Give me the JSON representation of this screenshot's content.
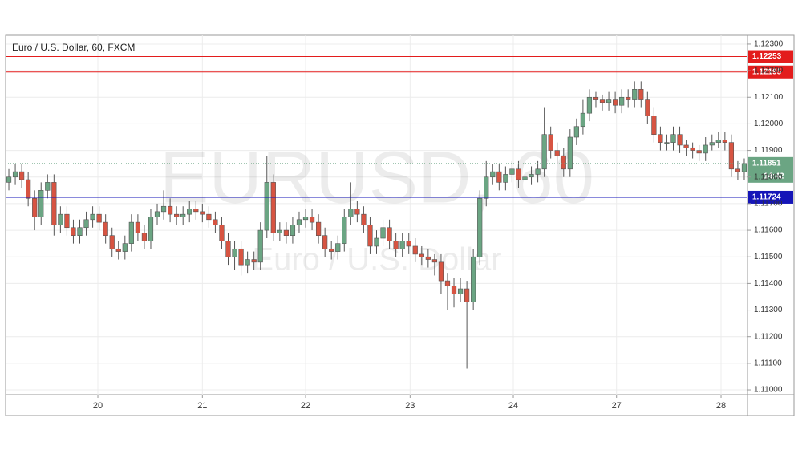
{
  "chart_data": {
    "type": "candlestick",
    "title": "Euro / U.S. Dollar, 60, FXCM",
    "watermark": "EURUSD, 60",
    "watermark_subtitle": "Euro / U.S. Dollar",
    "up_color": "#6ba583",
    "down_color": "#d75442",
    "open": [
      1.1178,
      1.118,
      1.1182,
      1.1179,
      1.1172,
      1.1165,
      1.1175,
      1.1178,
      1.1162,
      1.1166,
      1.1161,
      1.1158,
      1.1161,
      1.1164,
      1.1166,
      1.1163,
      1.1158,
      1.1153,
      1.1152,
      1.1155,
      1.1163,
      1.1159,
      1.1156,
      1.1165,
      1.1167,
      1.1169,
      1.1166,
      1.1165,
      1.1166,
      1.1168,
      1.1167,
      1.1166,
      1.1164,
      1.1162,
      1.1156,
      1.115,
      1.1153,
      1.1147,
      1.1149,
      1.1148,
      1.116,
      1.1178,
      1.1159,
      1.116,
      1.1158,
      1.1162,
      1.1164,
      1.1165,
      1.1163,
      1.1158,
      1.1153,
      1.1152,
      1.1155,
      1.1165,
      1.1168,
      1.1166,
      1.1162,
      1.1154,
      1.1157,
      1.1161,
      1.1156,
      1.1153,
      1.1156,
      1.1154,
      1.1151,
      1.115,
      1.1149,
      1.1148,
      1.1141,
      1.1139,
      1.1136,
      1.1138,
      1.1133,
      1.115,
      1.1172,
      1.118,
      1.1182,
      1.1178,
      1.1181,
      1.1183,
      1.1179,
      1.118,
      1.1181,
      1.1183,
      1.1196,
      1.119,
      1.1188,
      1.1183,
      1.1195,
      1.1199,
      1.1204,
      1.121,
      1.1209,
      1.1208,
      1.1209,
      1.1207,
      1.121,
      1.1209,
      1.1213,
      1.1209,
      1.1203,
      1.1196,
      1.1193,
      1.1193,
      1.1196,
      1.1192,
      1.1191,
      1.119,
      1.1189,
      1.1192,
      1.1193,
      1.1194,
      1.1193,
      1.1183,
      1.1182
    ],
    "high": [
      1.1183,
      1.1185,
      1.1185,
      1.1182,
      1.1175,
      1.1178,
      1.1181,
      1.1181,
      1.1169,
      1.1169,
      1.1164,
      1.1164,
      1.1167,
      1.1169,
      1.1169,
      1.1166,
      1.1161,
      1.1156,
      1.1158,
      1.1166,
      1.1166,
      1.1162,
      1.1168,
      1.117,
      1.1175,
      1.1172,
      1.1169,
      1.1169,
      1.1171,
      1.1171,
      1.117,
      1.1169,
      1.1167,
      1.1165,
      1.1159,
      1.1156,
      1.1156,
      1.1152,
      1.1152,
      1.1163,
      1.1188,
      1.1181,
      1.1163,
      1.1163,
      1.1165,
      1.1167,
      1.1168,
      1.1168,
      1.1166,
      1.1161,
      1.1156,
      1.1158,
      1.1168,
      1.1178,
      1.1171,
      1.1169,
      1.1165,
      1.116,
      1.1164,
      1.1164,
      1.1159,
      1.1159,
      1.1159,
      1.1157,
      1.1154,
      1.1153,
      1.1151,
      1.1151,
      1.1144,
      1.1142,
      1.1142,
      1.1141,
      1.1153,
      1.1175,
      1.1186,
      1.1185,
      1.1185,
      1.1184,
      1.1186,
      1.1186,
      1.1183,
      1.1184,
      1.1186,
      1.1206,
      1.1199,
      1.1193,
      1.1191,
      1.1198,
      1.1202,
      1.1209,
      1.1213,
      1.1212,
      1.1211,
      1.1212,
      1.1212,
      1.1213,
      1.1213,
      1.1216,
      1.1216,
      1.1212,
      1.1206,
      1.1199,
      1.1196,
      1.1199,
      1.1199,
      1.1194,
      1.1193,
      1.1192,
      1.1195,
      1.1196,
      1.1197,
      1.1197,
      1.1196,
      1.1186,
      1.1187
    ],
    "low": [
      1.1175,
      1.1177,
      1.1176,
      1.1169,
      1.116,
      1.1162,
      1.1172,
      1.1158,
      1.1159,
      1.1158,
      1.1155,
      1.1155,
      1.1158,
      1.1161,
      1.116,
      1.1155,
      1.115,
      1.1149,
      1.1149,
      1.1152,
      1.1156,
      1.1153,
      1.1153,
      1.1162,
      1.1164,
      1.1163,
      1.1162,
      1.1162,
      1.1163,
      1.1164,
      1.1163,
      1.1161,
      1.1159,
      1.1153,
      1.1147,
      1.1145,
      1.1143,
      1.1144,
      1.1145,
      1.1145,
      1.1157,
      1.1156,
      1.1156,
      1.1155,
      1.1155,
      1.1159,
      1.1161,
      1.116,
      1.1155,
      1.115,
      1.1149,
      1.1149,
      1.1152,
      1.1162,
      1.1163,
      1.1159,
      1.1151,
      1.1151,
      1.1154,
      1.1153,
      1.115,
      1.115,
      1.1151,
      1.1148,
      1.1147,
      1.1146,
      1.1143,
      1.1136,
      1.113,
      1.1131,
      1.1133,
      1.1108,
      1.113,
      1.1147,
      1.1169,
      1.1177,
      1.1175,
      1.1175,
      1.1178,
      1.1176,
      1.1176,
      1.1177,
      1.1178,
      1.118,
      1.1187,
      1.1185,
      1.118,
      1.118,
      1.1192,
      1.1196,
      1.1201,
      1.1206,
      1.1205,
      1.1205,
      1.1204,
      1.1204,
      1.1206,
      1.1206,
      1.1206,
      1.12,
      1.1193,
      1.119,
      1.119,
      1.119,
      1.1189,
      1.1188,
      1.1187,
      1.1186,
      1.1186,
      1.119,
      1.1191,
      1.119,
      1.118,
      1.1179,
      1.1179
    ],
    "close": [
      1.118,
      1.1182,
      1.1179,
      1.1172,
      1.1165,
      1.1175,
      1.1178,
      1.1162,
      1.1166,
      1.1161,
      1.1158,
      1.1161,
      1.1164,
      1.1166,
      1.1163,
      1.1158,
      1.1153,
      1.1152,
      1.1155,
      1.1163,
      1.1159,
      1.1156,
      1.1165,
      1.1167,
      1.1169,
      1.1166,
      1.1165,
      1.1166,
      1.1168,
      1.1167,
      1.1166,
      1.1164,
      1.1162,
      1.1156,
      1.115,
      1.1153,
      1.1147,
      1.1149,
      1.1148,
      1.116,
      1.1178,
      1.1159,
      1.116,
      1.1158,
      1.1162,
      1.1164,
      1.1165,
      1.1163,
      1.1158,
      1.1153,
      1.1152,
      1.1155,
      1.1165,
      1.1168,
      1.1166,
      1.1162,
      1.1154,
      1.1157,
      1.1161,
      1.1156,
      1.1153,
      1.1156,
      1.1154,
      1.1151,
      1.115,
      1.1149,
      1.1148,
      1.1141,
      1.1139,
      1.1136,
      1.1138,
      1.1133,
      1.115,
      1.1172,
      1.118,
      1.1182,
      1.1178,
      1.1181,
      1.1183,
      1.1179,
      1.118,
      1.1181,
      1.1183,
      1.1196,
      1.119,
      1.1188,
      1.1183,
      1.1195,
      1.1199,
      1.1204,
      1.121,
      1.1209,
      1.1208,
      1.1209,
      1.1207,
      1.121,
      1.1209,
      1.1213,
      1.1209,
      1.1203,
      1.1196,
      1.1193,
      1.1193,
      1.1196,
      1.1192,
      1.1191,
      1.119,
      1.1189,
      1.1192,
      1.1193,
      1.1194,
      1.1193,
      1.1183,
      1.1182,
      1.11851
    ],
    "xlim": [
      0,
      115
    ],
    "xticks": [
      {
        "value": 14.3,
        "label": "20"
      },
      {
        "value": 30.5,
        "label": "21"
      },
      {
        "value": 46.5,
        "label": "22"
      },
      {
        "value": 62.7,
        "label": "23"
      },
      {
        "value": 78.7,
        "label": "24"
      },
      {
        "value": 94.7,
        "label": "27"
      },
      {
        "value": 110.9,
        "label": "28"
      }
    ],
    "ylim": [
      1.10982,
      1.12333
    ],
    "yticks": [
      {
        "value": 1.11,
        "label": "1.11000"
      },
      {
        "value": 1.111,
        "label": "1.11100"
      },
      {
        "value": 1.112,
        "label": "1.11200"
      },
      {
        "value": 1.113,
        "label": "1.11300"
      },
      {
        "value": 1.114,
        "label": "1.11400"
      },
      {
        "value": 1.115,
        "label": "1.11500"
      },
      {
        "value": 1.116,
        "label": "1.11600"
      },
      {
        "value": 1.117,
        "label": "1.11700"
      },
      {
        "value": 1.118,
        "label": "1.11800"
      },
      {
        "value": 1.119,
        "label": "1.11900"
      },
      {
        "value": 1.12,
        "label": "1.12000"
      },
      {
        "value": 1.121,
        "label": "1.12100"
      },
      {
        "value": 1.122,
        "label": "1.12200"
      },
      {
        "value": 1.123,
        "label": "1.12300"
      }
    ],
    "grid": true,
    "levels": [
      {
        "value": 1.12253,
        "color": "#e31c1c"
      },
      {
        "value": 1.12195,
        "color": "#e31c1c"
      },
      {
        "value": 1.11724,
        "color": "#1515b8"
      }
    ],
    "last_price": {
      "value": 1.11851,
      "color": "#6ba583",
      "countdown": "14:42"
    }
  }
}
